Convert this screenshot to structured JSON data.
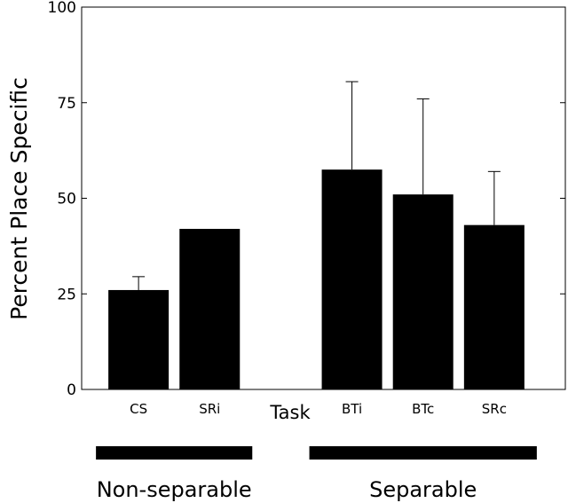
{
  "chart_data": {
    "type": "bar",
    "categories": [
      "CS",
      "SRi",
      "BTi",
      "BTc",
      "SRc"
    ],
    "values": [
      26,
      42,
      57.5,
      51,
      43
    ],
    "error_upper": [
      29.5,
      null,
      80.5,
      76,
      57
    ],
    "xlabel": "Task",
    "ylabel": "Percent Place Specific",
    "ylim": [
      0,
      100
    ],
    "yticks": [
      0,
      25,
      50,
      75,
      100
    ],
    "grid": false,
    "bar_color": "#000000",
    "groups": [
      {
        "label": "Non-separable",
        "categories": [
          "CS",
          "SRi"
        ]
      },
      {
        "label": "Separable",
        "categories": [
          "BTi",
          "BTc",
          "SRc"
        ]
      }
    ]
  }
}
